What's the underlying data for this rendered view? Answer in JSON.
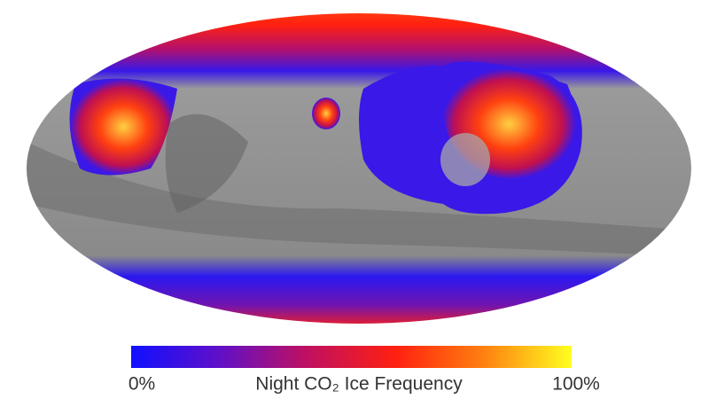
{
  "map": {
    "colorbar": {
      "title": "Night CO₂ Ice Frequency",
      "range": [
        0,
        100
      ],
      "ticks": [
        {
          "value": 0,
          "label": "0%"
        },
        {
          "value": 100,
          "label": "100%"
        }
      ],
      "colors": [
        "#1010ff",
        "#6010c8",
        "#c01060",
        "#ff2010",
        "#ff8010",
        "#ffff20"
      ]
    }
  }
}
